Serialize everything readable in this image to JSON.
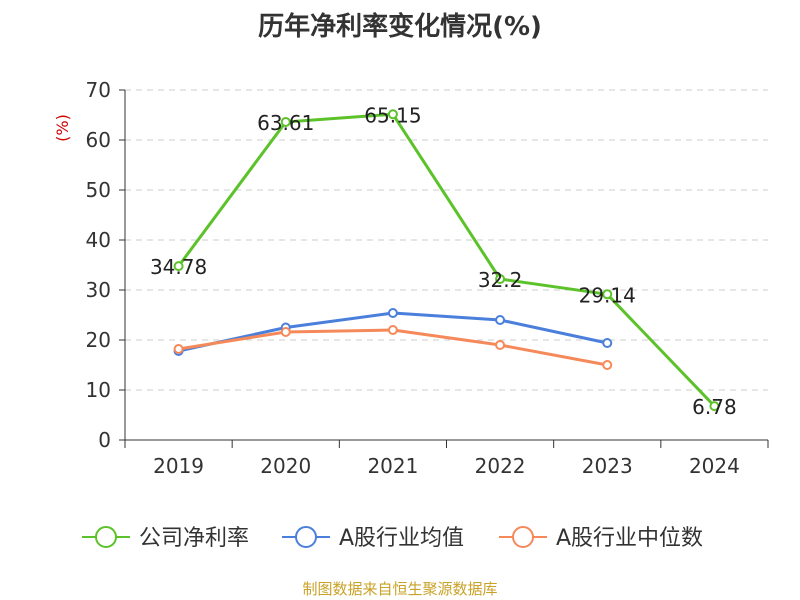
{
  "chart_data": {
    "type": "line",
    "title": "历年净利率变化情况(%)",
    "ylabel": "(%)",
    "xlabel": "",
    "categories": [
      "2019",
      "2020",
      "2021",
      "2022",
      "2023",
      "2024"
    ],
    "ylim": [
      0,
      70
    ],
    "yticks": [
      0,
      10,
      20,
      30,
      40,
      50,
      60,
      70
    ],
    "grid": true,
    "legend_position": "bottom",
    "series": [
      {
        "name": "公司净利率",
        "color": "#5cc22a",
        "values": [
          34.78,
          63.61,
          65.15,
          32.2,
          29.14,
          6.78
        ],
        "labels": [
          "34.78",
          "63.61",
          "65.15",
          "32.2",
          "29.14",
          "6.78"
        ]
      },
      {
        "name": "A股行业均值",
        "color": "#4a7fdb",
        "values": [
          17.8,
          22.5,
          25.4,
          24.0,
          19.4,
          null
        ]
      },
      {
        "name": "A股行业中位数",
        "color": "#f5895a",
        "values": [
          18.2,
          21.6,
          22.0,
          19.0,
          15.0,
          null
        ]
      }
    ]
  },
  "source_note": "制图数据来自恒生聚源数据库"
}
